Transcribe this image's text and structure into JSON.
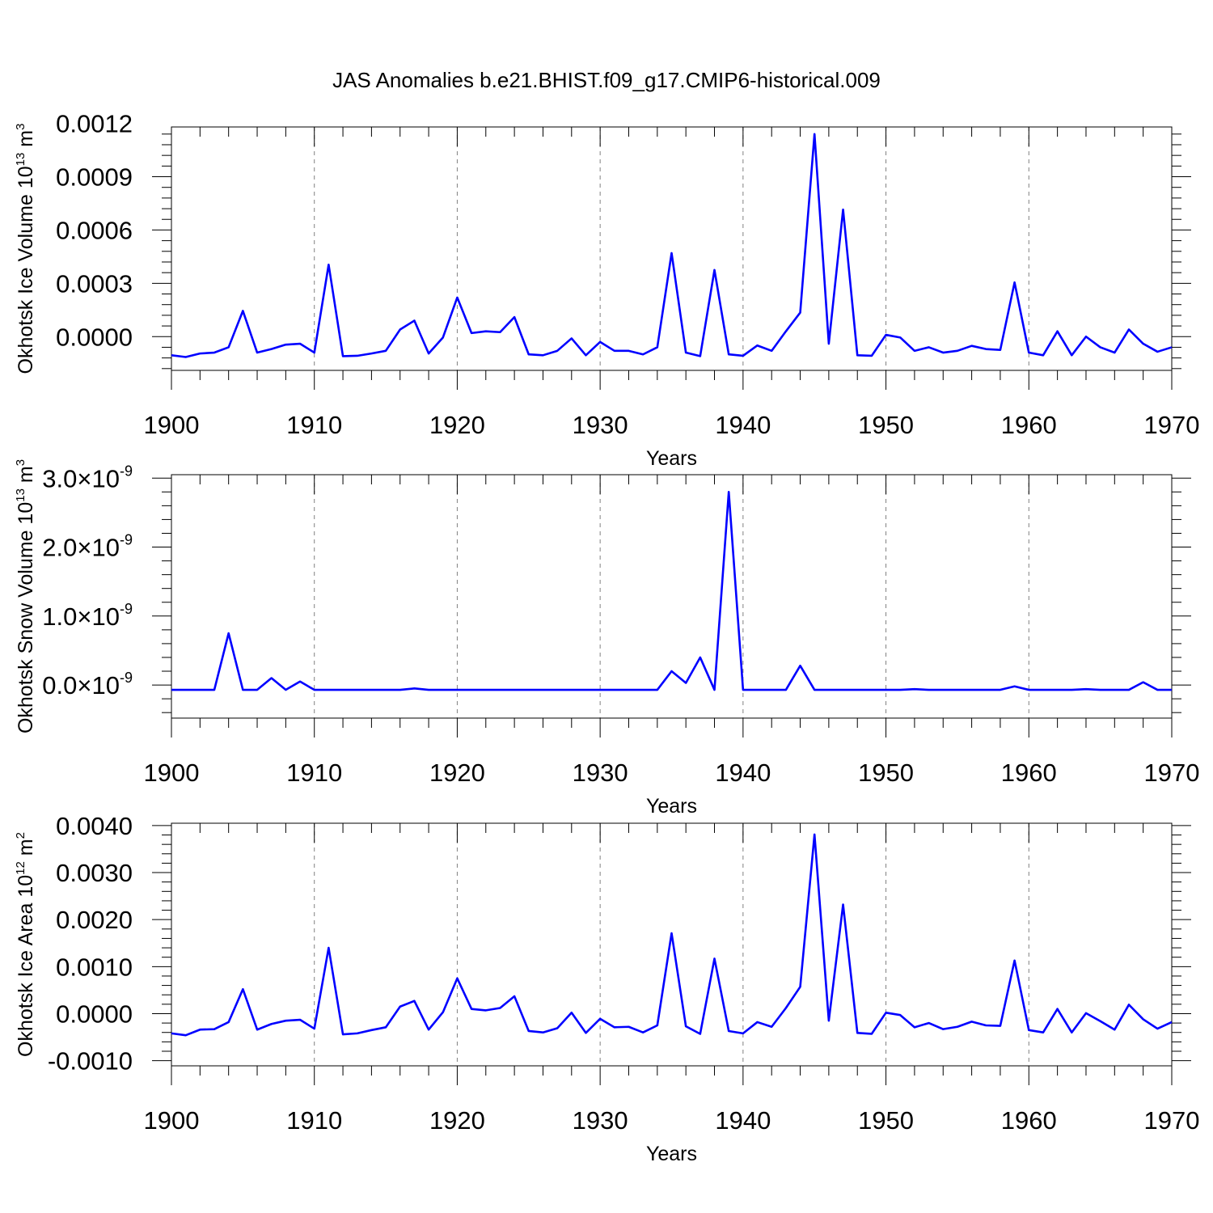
{
  "figure": {
    "title": "JAS Anomalies b.e21.BHIST.f09_g17.CMIP6-historical.009",
    "line_color": "#0000ff",
    "grid_color": "#808080"
  },
  "chart_data": [
    {
      "type": "line",
      "ylabel": "Okhotsk Ice Volume 10",
      "ylabel_exponent": "13",
      "ylabel_unit": " m",
      "ylabel_unit_exponent": "3",
      "xlabel": "Years",
      "xlim": [
        1900,
        1970
      ],
      "ylim": [
        -0.00019,
        0.00118
      ],
      "grid": "vertical dashed at major x ticks",
      "x_ticks": [
        1900,
        1910,
        1920,
        1930,
        1940,
        1950,
        1960,
        1970
      ],
      "x_tick_labels": [
        "1900",
        "1910",
        "1920",
        "1930",
        "1940",
        "1950",
        "1960",
        "1970"
      ],
      "y_ticks": [
        0.0,
        0.0003,
        0.0006,
        0.0009,
        0.0012
      ],
      "y_tick_labels": [
        "0.0000",
        "0.0003",
        "0.0006",
        "0.0009",
        "0.0012"
      ],
      "x_start": 1900,
      "values": [
        -0.000105,
        -0.000115,
        -9.5e-05,
        -9e-05,
        -6e-05,
        0.000145,
        -9e-05,
        -7e-05,
        -4.5e-05,
        -4e-05,
        -9e-05,
        0.000405,
        -0.00011,
        -0.000108,
        -9.5e-05,
        -8e-05,
        4e-05,
        9e-05,
        -9.5e-05,
        -5e-06,
        0.00022,
        2e-05,
        3e-05,
        2.5e-05,
        0.00011,
        -0.0001,
        -0.000105,
        -8e-05,
        -1e-05,
        -0.000105,
        -3e-05,
        -8e-05,
        -8e-05,
        -0.0001,
        -6e-05,
        0.00047,
        -9e-05,
        -0.00011,
        0.000375,
        -0.0001,
        -0.000108,
        -5e-05,
        -8e-05,
        3e-05,
        0.000135,
        0.00114,
        -4e-05,
        0.000715,
        -0.000105,
        -0.000108,
        1e-05,
        -5e-06,
        -8e-05,
        -6e-05,
        -9e-05,
        -8e-05,
        -5.2e-05,
        -7e-05,
        -7.5e-05,
        0.000305,
        -9e-05,
        -0.000105,
        3e-05,
        -0.000105,
        0.0,
        -6e-05,
        -9e-05,
        4e-05,
        -4e-05,
        -8.5e-05,
        -6e-05
      ]
    },
    {
      "type": "line",
      "ylabel": "Okhotsk Snow Volume 10",
      "ylabel_exponent": "13",
      "ylabel_unit": " m",
      "ylabel_unit_exponent": "3",
      "xlabel": "Years",
      "xlim": [
        1900,
        1970
      ],
      "ylim": [
        -4.8e-10,
        3.05e-09
      ],
      "grid": "vertical dashed at major x ticks",
      "x_ticks": [
        1900,
        1910,
        1920,
        1930,
        1940,
        1950,
        1960,
        1970
      ],
      "x_tick_labels": [
        "1900",
        "1910",
        "1920",
        "1930",
        "1940",
        "1950",
        "1960",
        "1970"
      ],
      "y_ticks": [
        0.0,
        1e-09,
        2e-09,
        3e-09
      ],
      "y_tick_mantissas": [
        "0.0",
        "1.0",
        "2.0",
        "3.0"
      ],
      "y_tick_times": "×",
      "y_tick_base": "10",
      "y_tick_exponent": "-9",
      "x_start": 1900,
      "values": [
        -7e-11,
        -7e-11,
        -7e-11,
        -7e-11,
        7.5e-10,
        -7e-11,
        -7e-11,
        1e-10,
        -7e-11,
        5e-11,
        -7e-11,
        -7e-11,
        -7e-11,
        -7e-11,
        -7e-11,
        -7e-11,
        -7e-11,
        -5e-11,
        -7e-11,
        -7e-11,
        -7e-11,
        -7e-11,
        -7e-11,
        -7e-11,
        -7e-11,
        -7e-11,
        -7e-11,
        -7e-11,
        -7e-11,
        -7e-11,
        -7e-11,
        -7e-11,
        -7e-11,
        -7e-11,
        -7e-11,
        2e-10,
        3e-11,
        4e-10,
        -7e-11,
        2.8e-09,
        -7e-11,
        -7e-11,
        -7e-11,
        -7e-11,
        2.8e-10,
        -7e-11,
        -7e-11,
        -7e-11,
        -7e-11,
        -7e-11,
        -7e-11,
        -7e-11,
        -6e-11,
        -7e-11,
        -7e-11,
        -7e-11,
        -7e-11,
        -7e-11,
        -7e-11,
        -2e-11,
        -7e-11,
        -7e-11,
        -7e-11,
        -7e-11,
        -6e-11,
        -7e-11,
        -7e-11,
        -7e-11,
        4e-11,
        -7e-11,
        -7e-11
      ]
    },
    {
      "type": "line",
      "ylabel": "Okhotsk Ice Area 10",
      "ylabel_exponent": "12",
      "ylabel_unit": " m",
      "ylabel_unit_exponent": "2",
      "xlabel": "Years",
      "xlim": [
        1900,
        1970
      ],
      "ylim": [
        -0.00111,
        0.00405
      ],
      "grid": "vertical dashed at major x ticks",
      "x_ticks": [
        1900,
        1910,
        1920,
        1930,
        1940,
        1950,
        1960,
        1970
      ],
      "x_tick_labels": [
        "1900",
        "1910",
        "1920",
        "1930",
        "1940",
        "1950",
        "1960",
        "1970"
      ],
      "y_ticks": [
        -0.001,
        0.0,
        0.001,
        0.002,
        0.003,
        0.004
      ],
      "y_tick_labels": [
        "-0.0010",
        "0.0000",
        "0.0010",
        "0.0020",
        "0.0030",
        "0.0040"
      ],
      "x_start": 1900,
      "values": [
        -0.00042,
        -0.00046,
        -0.00034,
        -0.00033,
        -0.00018,
        0.00052,
        -0.00034,
        -0.00022,
        -0.00015,
        -0.00013,
        -0.00032,
        0.0014,
        -0.00044,
        -0.00042,
        -0.00035,
        -0.00029,
        0.00015,
        0.00027,
        -0.00034,
        3e-05,
        0.00075,
        0.0001,
        7e-05,
        0.00012,
        0.00037,
        -0.00037,
        -0.0004,
        -0.00031,
        2e-05,
        -0.00041,
        -0.00011,
        -0.00029,
        -0.00028,
        -0.0004,
        -0.00025,
        0.00171,
        -0.00027,
        -0.00043,
        0.00117,
        -0.00037,
        -0.00042,
        -0.00018,
        -0.00028,
        0.00012,
        0.00057,
        0.00381,
        -0.00015,
        0.00232,
        -0.00041,
        -0.00043,
        2e-05,
        -3e-05,
        -0.00029,
        -0.0002,
        -0.00033,
        -0.00028,
        -0.00017,
        -0.00025,
        -0.00026,
        0.00113,
        -0.00035,
        -0.0004,
        0.0001,
        -0.0004,
        1e-05,
        -0.00016,
        -0.00034,
        0.00019,
        -0.00012,
        -0.00032,
        -0.00018
      ]
    }
  ]
}
